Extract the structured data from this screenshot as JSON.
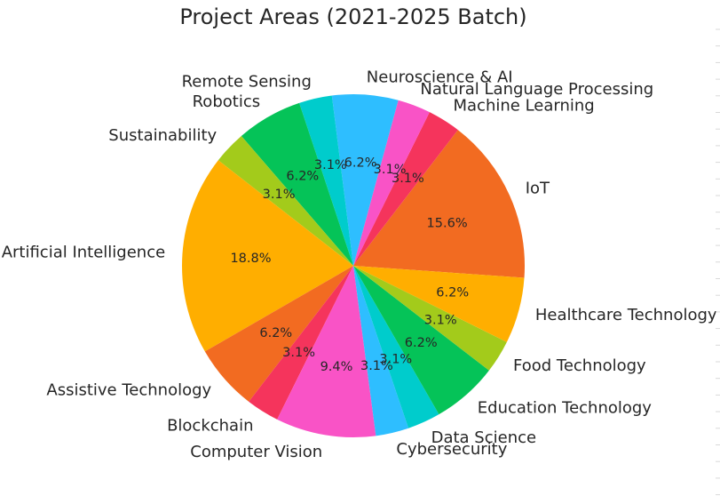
{
  "chart_data": {
    "type": "pie",
    "title": "Project Areas (2021-2025 Batch)",
    "slices": [
      {
        "label": "IoT",
        "value": 15.6,
        "pct_label": "15.6%",
        "color": "#F26B21"
      },
      {
        "label": "Machine Learning",
        "value": 3.1,
        "pct_label": "3.1%",
        "color": "#F5345C"
      },
      {
        "label": "Natural Language Processing",
        "value": 3.1,
        "pct_label": "3.1%",
        "color": "#F953C6"
      },
      {
        "label": "Neuroscience & AI",
        "value": 6.2,
        "pct_label": "6.2%",
        "color": "#2EBEFF"
      },
      {
        "label": "Remote Sensing",
        "value": 3.1,
        "pct_label": "3.1%",
        "color": "#00CCCC"
      },
      {
        "label": "Robotics",
        "value": 6.2,
        "pct_label": "6.2%",
        "color": "#05C358"
      },
      {
        "label": "Sustainability",
        "value": 3.1,
        "pct_label": "3.1%",
        "color": "#A3CB1B"
      },
      {
        "label": "Artificial Intelligence",
        "value": 18.8,
        "pct_label": "18.8%",
        "color": "#FFAE00"
      },
      {
        "label": "Assistive Technology",
        "value": 6.2,
        "pct_label": "6.2%",
        "color": "#F26B21"
      },
      {
        "label": "Blockchain",
        "value": 3.1,
        "pct_label": "3.1%",
        "color": "#F5345C"
      },
      {
        "label": "Computer Vision",
        "value": 9.4,
        "pct_label": "9.4%",
        "color": "#F953C6"
      },
      {
        "label": "Cybersecurity",
        "value": 3.1,
        "pct_label": "3.1%",
        "color": "#2EBEFF"
      },
      {
        "label": "Data Science",
        "value": 3.1,
        "pct_label": "3.1%",
        "color": "#00CCCC"
      },
      {
        "label": "Education Technology",
        "value": 6.2,
        "pct_label": "6.2%",
        "color": "#05C358"
      },
      {
        "label": "Food Technology",
        "value": 3.1,
        "pct_label": "3.1%",
        "color": "#A3CB1B"
      },
      {
        "label": "Healthcare Technology",
        "value": 6.2,
        "pct_label": "6.2%",
        "color": "#FFAE00"
      }
    ]
  }
}
